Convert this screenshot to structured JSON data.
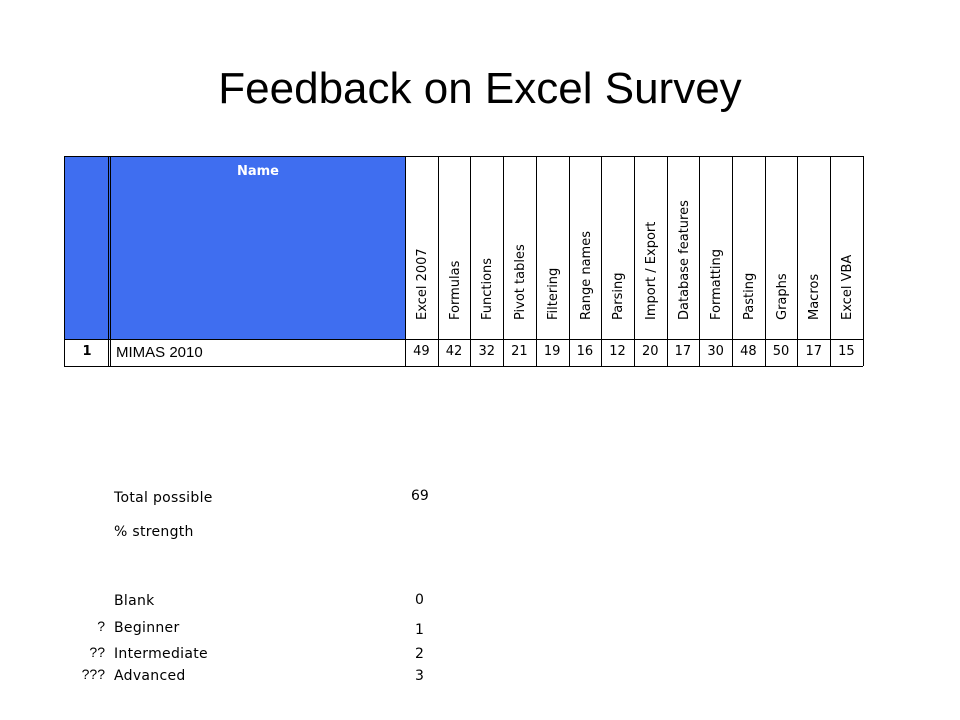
{
  "title": "Feedback on Excel Survey",
  "table": {
    "name_header": "Name",
    "columns": [
      "Excel 2007",
      "Formulas",
      "Functions",
      "Pivot tables",
      "Filtering",
      "Range names",
      "Parsing",
      "Import / Export",
      "Database features",
      "Formatting",
      "Pasting",
      "Graphs",
      "Macros",
      "Excel VBA"
    ],
    "rows": [
      {
        "num": "1",
        "name": "MIMAS 2010",
        "values": [
          "49",
          "42",
          "32",
          "21",
          "19",
          "16",
          "12",
          "20",
          "17",
          "30",
          "48",
          "50",
          "17",
          "15"
        ]
      }
    ],
    "header_color": "#3f6ef0"
  },
  "summary": [
    {
      "label": "Total possible",
      "value": "69"
    },
    {
      "label": "% strength",
      "value": ""
    }
  ],
  "legend": [
    {
      "mark": "",
      "label": "Blank",
      "value": "0"
    },
    {
      "mark": "?",
      "label": "Beginner",
      "value": "1"
    },
    {
      "mark": "??",
      "label": "Intermediate",
      "value": "2"
    },
    {
      "mark": "???",
      "label": "Advanced",
      "value": "3"
    }
  ]
}
